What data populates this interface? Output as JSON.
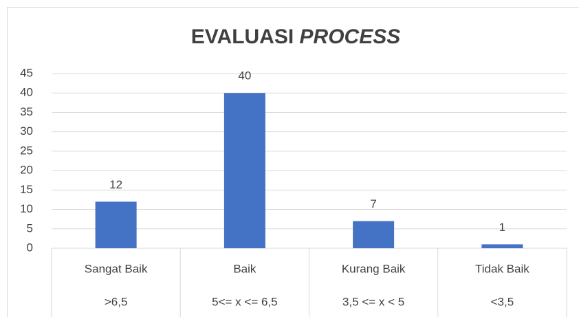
{
  "chart_data": {
    "type": "bar",
    "title": [
      "EVALUASI",
      "PROCESS"
    ],
    "categories": [
      "Sangat Baik",
      "Baik",
      "Kurang Baik",
      "Tidak Baik"
    ],
    "sublabels": [
      ">6,5",
      "5<= x <= 6,5",
      "3,5 <= x < 5",
      "<3,5"
    ],
    "values": [
      12,
      40,
      7,
      1
    ],
    "color": "#4472c4",
    "ylim": [
      0,
      45
    ],
    "yticks": [
      0,
      5,
      10,
      15,
      20,
      25,
      30,
      35,
      40,
      45
    ],
    "grid": true
  }
}
